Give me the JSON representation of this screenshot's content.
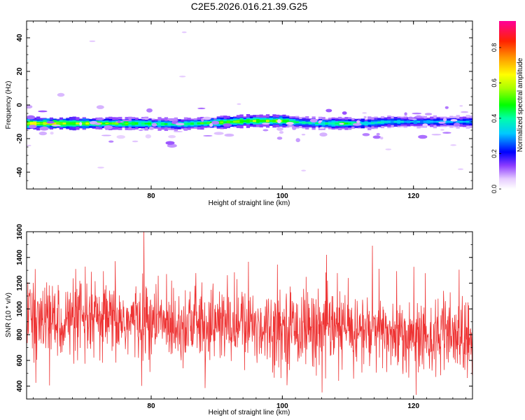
{
  "title": "C2E5.2026.016.21.39.G25",
  "chart_data": [
    {
      "type": "heatmap",
      "xlabel": "Height of straight line (km)",
      "ylabel": "Frequency (Hz)",
      "xlim": [
        61,
        129
      ],
      "ylim": [
        -50,
        50
      ],
      "xticks": [
        80,
        100,
        120
      ],
      "xtick_labels": [
        "80",
        "100",
        "120"
      ],
      "yticks": [
        40,
        20,
        0,
        -20,
        -40
      ],
      "ytick_labels": [
        "40",
        "20",
        "0",
        "-20",
        "-40"
      ],
      "colorbar": {
        "label": "Normalized spectral amplitude",
        "range": [
          0.0,
          0.95
        ],
        "ticks": [
          0.0,
          0.2,
          0.4,
          0.6,
          0.8
        ],
        "tick_labels": [
          "0.0",
          "0.2",
          "0.4",
          "0.6",
          "0.8"
        ]
      },
      "ridge": {
        "description_points_x": [
          61,
          70,
          78,
          84,
          90,
          95,
          100,
          103,
          106,
          110,
          113,
          116,
          120,
          125,
          129
        ],
        "center_freq_hz": [
          -11,
          -11,
          -11,
          -11.5,
          -10.5,
          -9.5,
          -9.5,
          -10.5,
          -11,
          -11,
          -11,
          -10,
          -10,
          -10,
          -10
        ],
        "peak_amplitude": [
          0.65,
          0.55,
          0.45,
          0.4,
          0.5,
          0.55,
          0.55,
          0.35,
          0.4,
          0.45,
          0.35,
          0.35,
          0.3,
          0.3,
          0.3
        ]
      }
    },
    {
      "type": "line",
      "xlabel": "Height of straight line (km)",
      "ylabel": "SNR (10 * v/v)",
      "xlim": [
        61,
        129
      ],
      "ylim": [
        300,
        1600
      ],
      "xticks": [
        80,
        100,
        120
      ],
      "xtick_labels": [
        "80",
        "100",
        "120"
      ],
      "yticks": [
        400,
        600,
        800,
        1000,
        1200,
        1400,
        1600
      ],
      "ytick_labels": [
        "400",
        "600",
        "800",
        "1000",
        "1200",
        "1400",
        "1600"
      ],
      "series": [
        {
          "name": "SNR",
          "color": "#ee3333",
          "trend_x": [
            61,
            70,
            80,
            90,
            100,
            110,
            120,
            129
          ],
          "trend_mean": [
            920,
            900,
            900,
            880,
            860,
            840,
            790,
            770
          ],
          "noise_std": 150,
          "n_samples": 1400,
          "max_value": 1610,
          "min_value": 330
        }
      ]
    }
  ],
  "colors": {
    "snr_line": "#ee3333",
    "axis": "#000000",
    "background": "#ffffff"
  }
}
